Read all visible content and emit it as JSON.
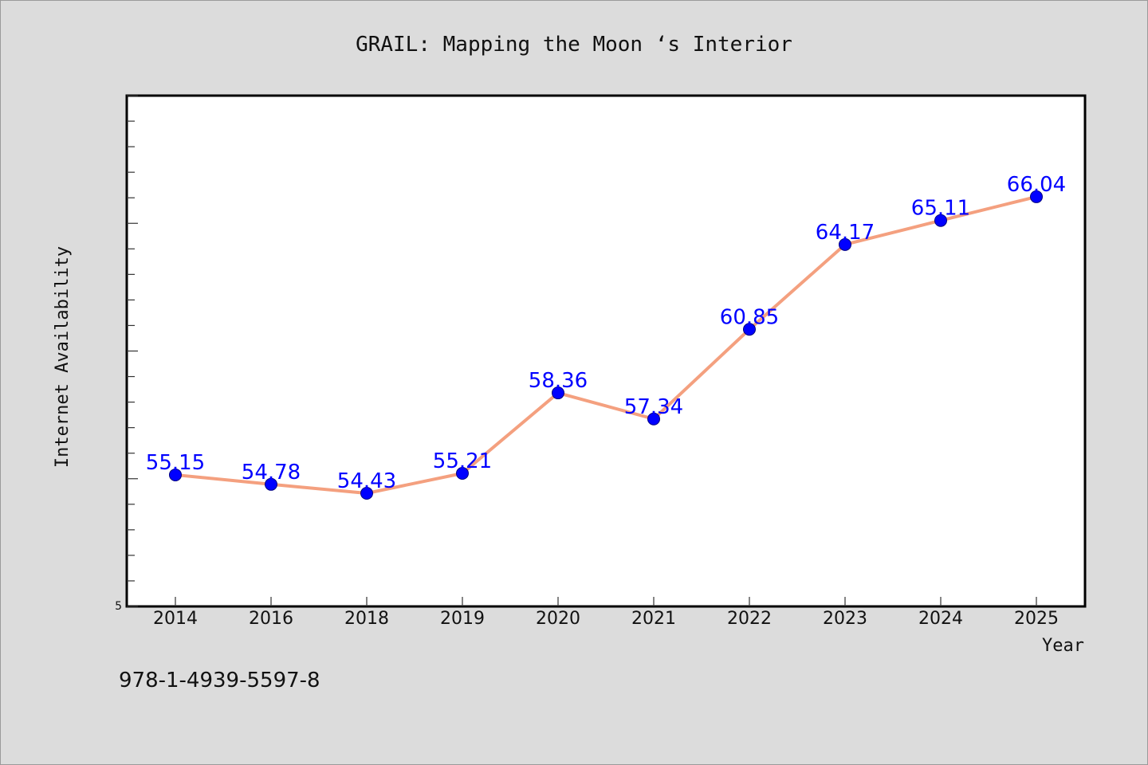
{
  "chart_data": {
    "type": "line",
    "title": "GRAIL: Mapping the Moon ‘s Interior",
    "xlabel": "Year",
    "ylabel": "Internet Availability",
    "categories": [
      "2014",
      "2016",
      "2018",
      "2019",
      "2020",
      "2021",
      "2022",
      "2023",
      "2024",
      "2025"
    ],
    "series": [
      {
        "values": [
          55.15,
          54.78,
          54.43,
          55.21,
          58.36,
          57.34,
          60.85,
          64.17,
          65.11,
          66.04
        ],
        "data_labels": [
          "55.15",
          "54.78",
          "54.43",
          "55.21",
          "58.36",
          "57.34",
          "60.85",
          "64.17",
          "65.11",
          "66.04"
        ]
      }
    ],
    "ylim": [
      50,
      70
    ],
    "y_tick_labels": [
      "5"
    ],
    "grid": false,
    "legend": "none",
    "colors": {
      "line": "#f4a07f",
      "marker": "#0000ff",
      "data_label": "#0000ff",
      "plot_background": "#ffffff",
      "page_background": "#dcdcdc"
    }
  },
  "footer": {
    "isbn": "978-1-4939-5597-8"
  }
}
